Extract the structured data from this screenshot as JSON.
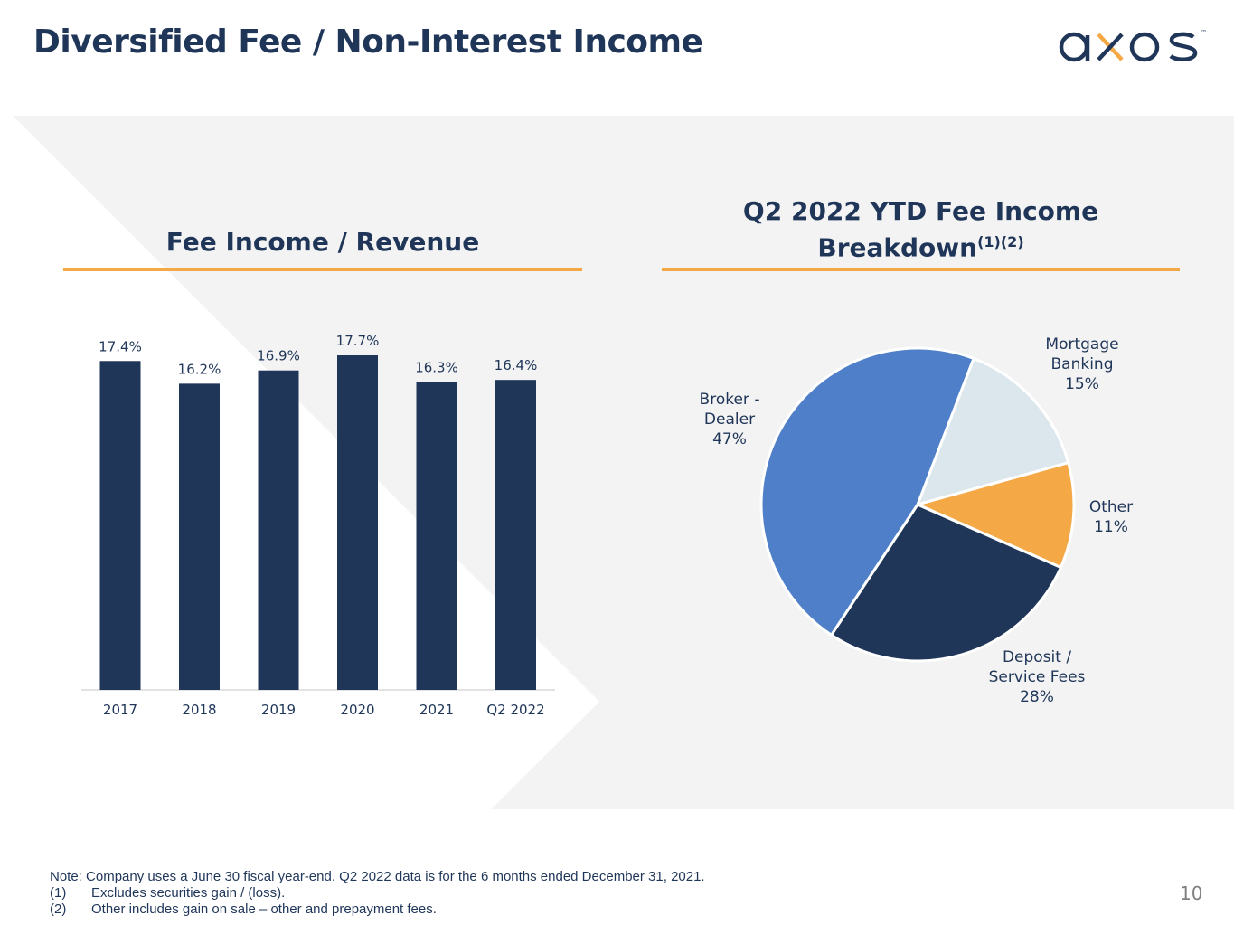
{
  "page": {
    "title": "Diversified Fee / Non-Interest Income",
    "logo_text": "axos",
    "logo_tm": "™",
    "page_number": "10"
  },
  "left_section": {
    "title": "Fee Income / Revenue"
  },
  "right_section": {
    "title_line1": "Q2 2022 YTD Fee Income",
    "title_line2": "Breakdown",
    "title_sup": "(1)(2)"
  },
  "chart_data": [
    {
      "type": "bar",
      "title": "Fee Income / Revenue",
      "categories": [
        "2017",
        "2018",
        "2019",
        "2020",
        "2021",
        "Q2 2022"
      ],
      "values": [
        17.4,
        16.2,
        16.9,
        17.7,
        16.3,
        16.4
      ],
      "value_labels": [
        "17.4%",
        "16.2%",
        "16.9%",
        "17.7%",
        "16.3%",
        "16.4%"
      ],
      "unit": "%",
      "ylim": [
        0,
        17.7
      ],
      "bar_color": "#1f3659"
    },
    {
      "type": "pie",
      "title": "Q2 2022 YTD Fee Income Breakdown",
      "slices": [
        {
          "label_lines": [
            "Mortgage",
            "Banking"
          ],
          "pct_label": "15%",
          "value": 15,
          "color": "#dce6ed"
        },
        {
          "label_lines": [
            "Other"
          ],
          "pct_label": "11%",
          "value": 11,
          "color": "#f5a846"
        },
        {
          "label_lines": [
            "Deposit /",
            "Service Fees"
          ],
          "pct_label": "28%",
          "value": 28,
          "color": "#1f3659"
        },
        {
          "label_lines": [
            "Broker -",
            "Dealer"
          ],
          "pct_label": "47%",
          "value": 47,
          "color": "#4f7fc8"
        }
      ]
    }
  ],
  "footnotes": {
    "note": "Note:  Company uses a June 30 fiscal year-end. Q2 2022 data is for the 6 months ended December 31, 2021.",
    "items": [
      {
        "num": "(1)",
        "text": "Excludes securities gain / (loss)."
      },
      {
        "num": "(2)",
        "text": "Other includes gain on sale – other and prepayment fees."
      }
    ]
  }
}
